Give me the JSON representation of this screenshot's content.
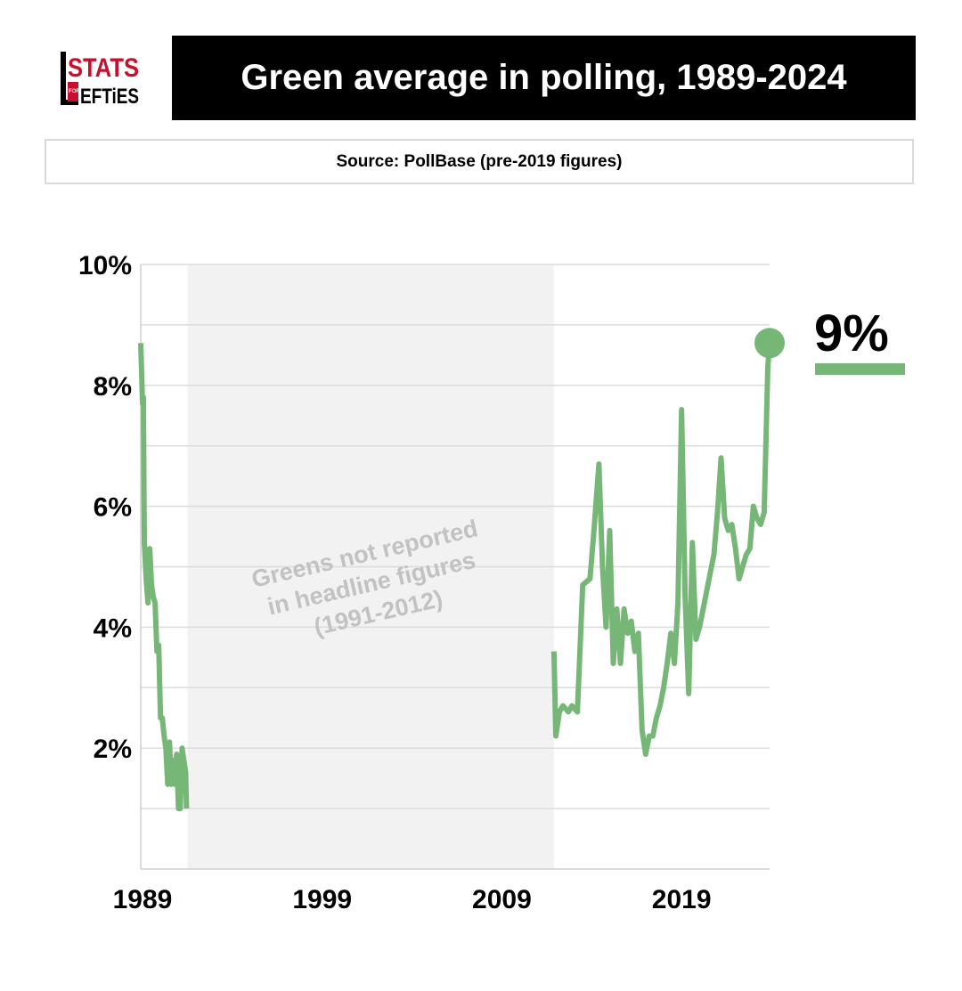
{
  "brand": {
    "logo_text_top": "STATS",
    "logo_text_small": "FOR",
    "logo_text_bottom": "EFTiES",
    "logo_red": "#c8102e"
  },
  "header": {
    "title": "Green average in polling, 1989-2024"
  },
  "source": {
    "text": "Source: PollBase (pre-2019 figures)"
  },
  "chart_data": {
    "type": "line",
    "title": "Green average in polling, 1989-2024",
    "xlabel": "",
    "ylabel": "",
    "xlim": [
      1989,
      2024
    ],
    "ylim": [
      0,
      10
    ],
    "x_ticks": [
      1989,
      1999,
      2009,
      2019
    ],
    "x_tick_labels": [
      "1989",
      "1999",
      "2009",
      "2019"
    ],
    "y_ticks": [
      2,
      4,
      6,
      8,
      10
    ],
    "y_tick_labels": [
      "2%",
      "4%",
      "6%",
      "8%",
      "10%"
    ],
    "grid": true,
    "line_color": "#76b778",
    "shaded_region": {
      "x_start": 1991.6,
      "x_end": 2012.0,
      "color": "#f2f2f2",
      "label_lines": [
        "Greens not reported",
        "in headline figures",
        "(1991-2012)"
      ]
    },
    "last_value_label": "9%",
    "series": [
      {
        "name": "Green",
        "segments": [
          {
            "x": [
              1989.0,
              1989.1,
              1989.15,
              1989.2,
              1989.3,
              1989.4,
              1989.5,
              1989.6,
              1989.7,
              1989.8,
              1989.9,
              1990.0,
              1990.1,
              1990.2,
              1990.3,
              1990.4,
              1990.5,
              1990.6,
              1990.7,
              1990.8,
              1990.9,
              1991.0,
              1991.1,
              1991.2,
              1991.3,
              1991.4,
              1991.5,
              1991.55
            ],
            "y": [
              8.7,
              7.7,
              7.8,
              5.4,
              4.8,
              4.4,
              5.3,
              4.7,
              4.5,
              4.4,
              3.6,
              3.7,
              2.5,
              2.5,
              2.2,
              2.0,
              1.4,
              2.1,
              1.4,
              1.8,
              1.4,
              1.9,
              1.0,
              1.0,
              2.0,
              1.8,
              1.6,
              1.0
            ]
          },
          {
            "x": [
              2012.0,
              2012.1,
              2012.3,
              2012.5,
              2012.8,
              2013.0,
              2013.3,
              2013.6,
              2014.0,
              2014.2,
              2014.5,
              2014.7,
              2014.9,
              2015.1,
              2015.3,
              2015.5,
              2015.7,
              2015.9,
              2016.1,
              2016.3,
              2016.5,
              2016.7,
              2016.9,
              2017.1,
              2017.3,
              2017.5,
              2017.7,
              2017.9,
              2018.1,
              2018.3,
              2018.5,
              2018.7,
              2018.9,
              2019.1,
              2019.3,
              2019.5,
              2019.7,
              2019.9,
              2020.1,
              2020.3,
              2020.5,
              2020.7,
              2020.9,
              2021.1,
              2021.3,
              2021.5,
              2021.7,
              2021.9,
              2022.1,
              2022.3,
              2022.5,
              2022.7,
              2022.9,
              2023.1,
              2023.3,
              2023.5,
              2023.7,
              2023.9,
              2024.0
            ],
            "y": [
              3.6,
              2.2,
              2.6,
              2.7,
              2.6,
              2.7,
              2.6,
              4.7,
              4.8,
              5.5,
              6.7,
              5.0,
              4.0,
              5.6,
              3.4,
              4.3,
              3.4,
              4.3,
              3.9,
              4.1,
              3.6,
              3.9,
              2.3,
              1.9,
              2.2,
              2.2,
              2.5,
              2.7,
              3.0,
              3.4,
              3.9,
              3.4,
              4.4,
              7.6,
              4.5,
              2.9,
              5.4,
              3.8,
              4.0,
              4.3,
              4.6,
              4.9,
              5.2,
              5.9,
              6.8,
              5.8,
              5.6,
              5.7,
              5.3,
              4.8,
              5.0,
              5.2,
              5.3,
              6.0,
              5.8,
              5.7,
              5.9,
              8.3,
              8.7
            ]
          }
        ]
      }
    ]
  }
}
